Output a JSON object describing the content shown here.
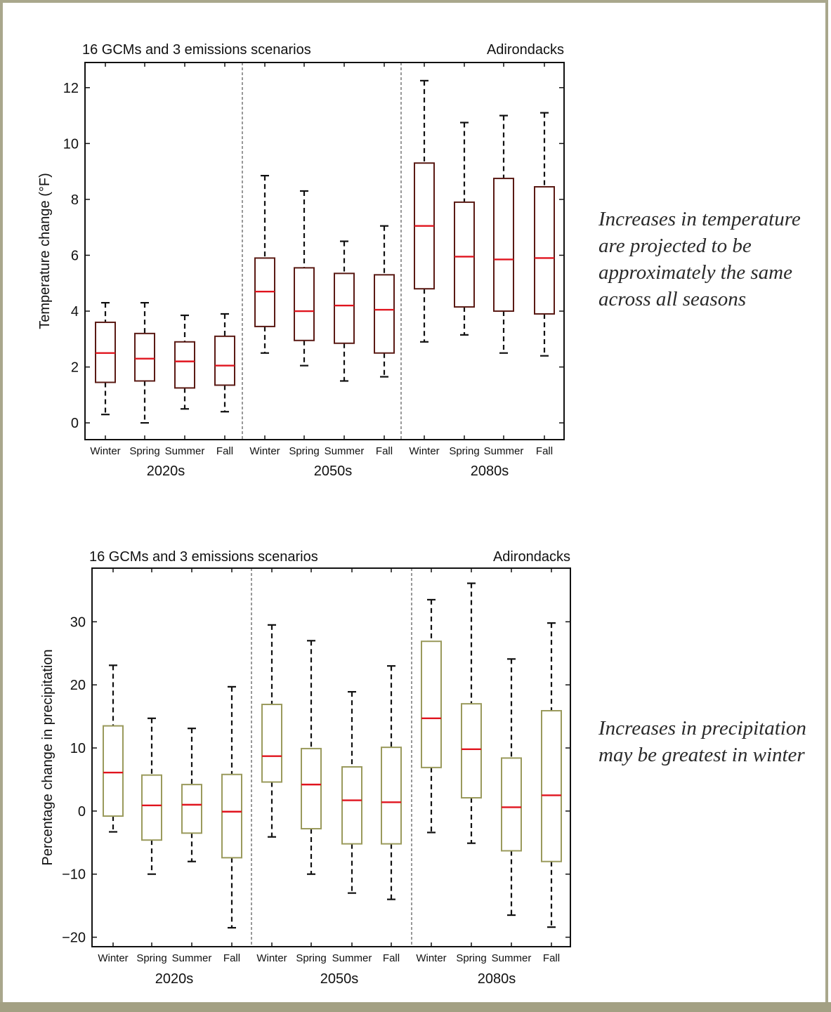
{
  "colors": {
    "frame": "#a9a78c",
    "temp_box": "#5a1a14",
    "precip_box": "#9a9a5c",
    "median": "#e0141e",
    "whisker": "#111111"
  },
  "captions": {
    "temperature": "Increases in temperature are projected to be approximately the same across all seasons",
    "precipitation": "Increases in precipitation may be greatest in winter"
  },
  "chart_data": [
    {
      "type": "box",
      "title": "16 GCMs and 3 emissions scenarios",
      "region": "Adirondacks",
      "ylabel": "Temperature change (°F)",
      "ylim": [
        -0.6,
        12.9
      ],
      "yticks": [
        0,
        2,
        4,
        6,
        8,
        10,
        12
      ],
      "ytick_labels": [
        "0",
        "2",
        "4",
        "6",
        "8",
        "10",
        "12"
      ],
      "periods": [
        "2020s",
        "2050s",
        "2080s"
      ],
      "seasons": [
        "Winter",
        "Spring",
        "Summer",
        "Fall"
      ],
      "boxes": [
        {
          "period": "2020s",
          "season": "Winter",
          "min": 0.3,
          "q1": 1.45,
          "median": 2.5,
          "q3": 3.6,
          "max": 4.3
        },
        {
          "period": "2020s",
          "season": "Spring",
          "min": 0.0,
          "q1": 1.5,
          "median": 2.3,
          "q3": 3.2,
          "max": 4.3
        },
        {
          "period": "2020s",
          "season": "Summer",
          "min": 0.5,
          "q1": 1.25,
          "median": 2.2,
          "q3": 2.9,
          "max": 3.85
        },
        {
          "period": "2020s",
          "season": "Fall",
          "min": 0.4,
          "q1": 1.35,
          "median": 2.05,
          "q3": 3.1,
          "max": 3.9
        },
        {
          "period": "2050s",
          "season": "Winter",
          "min": 2.5,
          "q1": 3.45,
          "median": 4.7,
          "q3": 5.9,
          "max": 8.85
        },
        {
          "period": "2050s",
          "season": "Spring",
          "min": 2.05,
          "q1": 2.95,
          "median": 4.0,
          "q3": 5.55,
          "max": 8.3
        },
        {
          "period": "2050s",
          "season": "Summer",
          "min": 1.5,
          "q1": 2.85,
          "median": 4.2,
          "q3": 5.35,
          "max": 6.5
        },
        {
          "period": "2050s",
          "season": "Fall",
          "min": 1.65,
          "q1": 2.5,
          "median": 4.05,
          "q3": 5.3,
          "max": 7.05
        },
        {
          "period": "2080s",
          "season": "Winter",
          "min": 2.9,
          "q1": 4.8,
          "median": 7.05,
          "q3": 9.3,
          "max": 12.25
        },
        {
          "period": "2080s",
          "season": "Spring",
          "min": 3.15,
          "q1": 4.15,
          "median": 5.95,
          "q3": 7.9,
          "max": 10.75
        },
        {
          "period": "2080s",
          "season": "Summer",
          "min": 2.5,
          "q1": 4.0,
          "median": 5.85,
          "q3": 8.75,
          "max": 11.0
        },
        {
          "period": "2080s",
          "season": "Fall",
          "min": 2.4,
          "q1": 3.9,
          "median": 5.9,
          "q3": 8.45,
          "max": 11.1
        }
      ]
    },
    {
      "type": "box",
      "title": "16 GCMs and 3 emissions scenarios",
      "region": "Adirondacks",
      "ylabel": "Percentage change in precipitation",
      "ylim": [
        -21.5,
        38.5
      ],
      "yticks": [
        -20,
        -10,
        0,
        10,
        20,
        30
      ],
      "ytick_labels": [
        "−20",
        "−10",
        "0",
        "10",
        "20",
        "30"
      ],
      "periods": [
        "2020s",
        "2050s",
        "2080s"
      ],
      "seasons": [
        "Winter",
        "Spring",
        "Summer",
        "Fall"
      ],
      "boxes": [
        {
          "period": "2020s",
          "season": "Winter",
          "min": -3.3,
          "q1": -0.8,
          "median": 6.1,
          "q3": 13.5,
          "max": 23.1
        },
        {
          "period": "2020s",
          "season": "Spring",
          "min": -10.0,
          "q1": -4.6,
          "median": 0.9,
          "q3": 5.7,
          "max": 14.7
        },
        {
          "period": "2020s",
          "season": "Summer",
          "min": -8.0,
          "q1": -3.5,
          "median": 1.0,
          "q3": 4.2,
          "max": 13.1
        },
        {
          "period": "2020s",
          "season": "Fall",
          "min": -18.5,
          "q1": -7.4,
          "median": -0.1,
          "q3": 5.8,
          "max": 19.7
        },
        {
          "period": "2050s",
          "season": "Winter",
          "min": -4.1,
          "q1": 4.6,
          "median": 8.7,
          "q3": 16.9,
          "max": 29.5
        },
        {
          "period": "2050s",
          "season": "Spring",
          "min": -10.0,
          "q1": -2.8,
          "median": 4.2,
          "q3": 9.9,
          "max": 27.0
        },
        {
          "period": "2050s",
          "season": "Summer",
          "min": -13.0,
          "q1": -5.2,
          "median": 1.7,
          "q3": 7.0,
          "max": 18.9
        },
        {
          "period": "2050s",
          "season": "Fall",
          "min": -14.0,
          "q1": -5.2,
          "median": 1.4,
          "q3": 10.1,
          "max": 23.0
        },
        {
          "period": "2080s",
          "season": "Winter",
          "min": -3.4,
          "q1": 6.9,
          "median": 14.7,
          "q3": 26.9,
          "max": 33.5
        },
        {
          "period": "2080s",
          "season": "Spring",
          "min": -5.1,
          "q1": 2.1,
          "median": 9.8,
          "q3": 17.0,
          "max": 36.1
        },
        {
          "period": "2080s",
          "season": "Summer",
          "min": -16.5,
          "q1": -6.3,
          "median": 0.6,
          "q3": 8.4,
          "max": 24.1
        },
        {
          "period": "2080s",
          "season": "Fall",
          "min": -18.4,
          "q1": -8.0,
          "median": 2.5,
          "q3": 15.9,
          "max": 29.8
        }
      ]
    }
  ]
}
